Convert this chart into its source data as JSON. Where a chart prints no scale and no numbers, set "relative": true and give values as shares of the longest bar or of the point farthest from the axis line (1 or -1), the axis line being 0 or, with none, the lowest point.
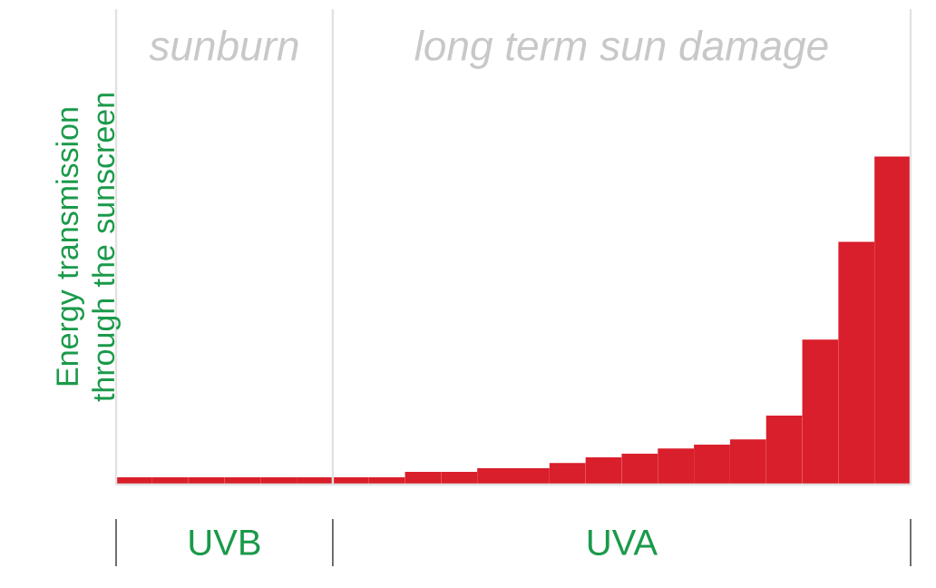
{
  "chart_data": {
    "type": "bar",
    "relative": true,
    "ylabel": "Energy transmission through the sunscreen",
    "color": "#d91f2b",
    "categories": [
      null,
      null,
      null,
      null,
      null,
      null,
      null,
      null,
      null,
      null,
      null,
      null,
      null,
      null,
      null,
      null,
      null,
      null,
      null,
      null,
      null,
      null
    ],
    "values": [
      0.022,
      0.022,
      0.022,
      0.022,
      0.022,
      0.022,
      0.022,
      0.022,
      0.039,
      0.039,
      0.05,
      0.05,
      0.066,
      0.083,
      0.094,
      0.11,
      0.122,
      0.138,
      0.21,
      0.442,
      0.74,
      1
    ],
    "annotations": [
      "sunburn",
      "long term sun damage",
      "UVB",
      "UVA"
    ]
  }
}
